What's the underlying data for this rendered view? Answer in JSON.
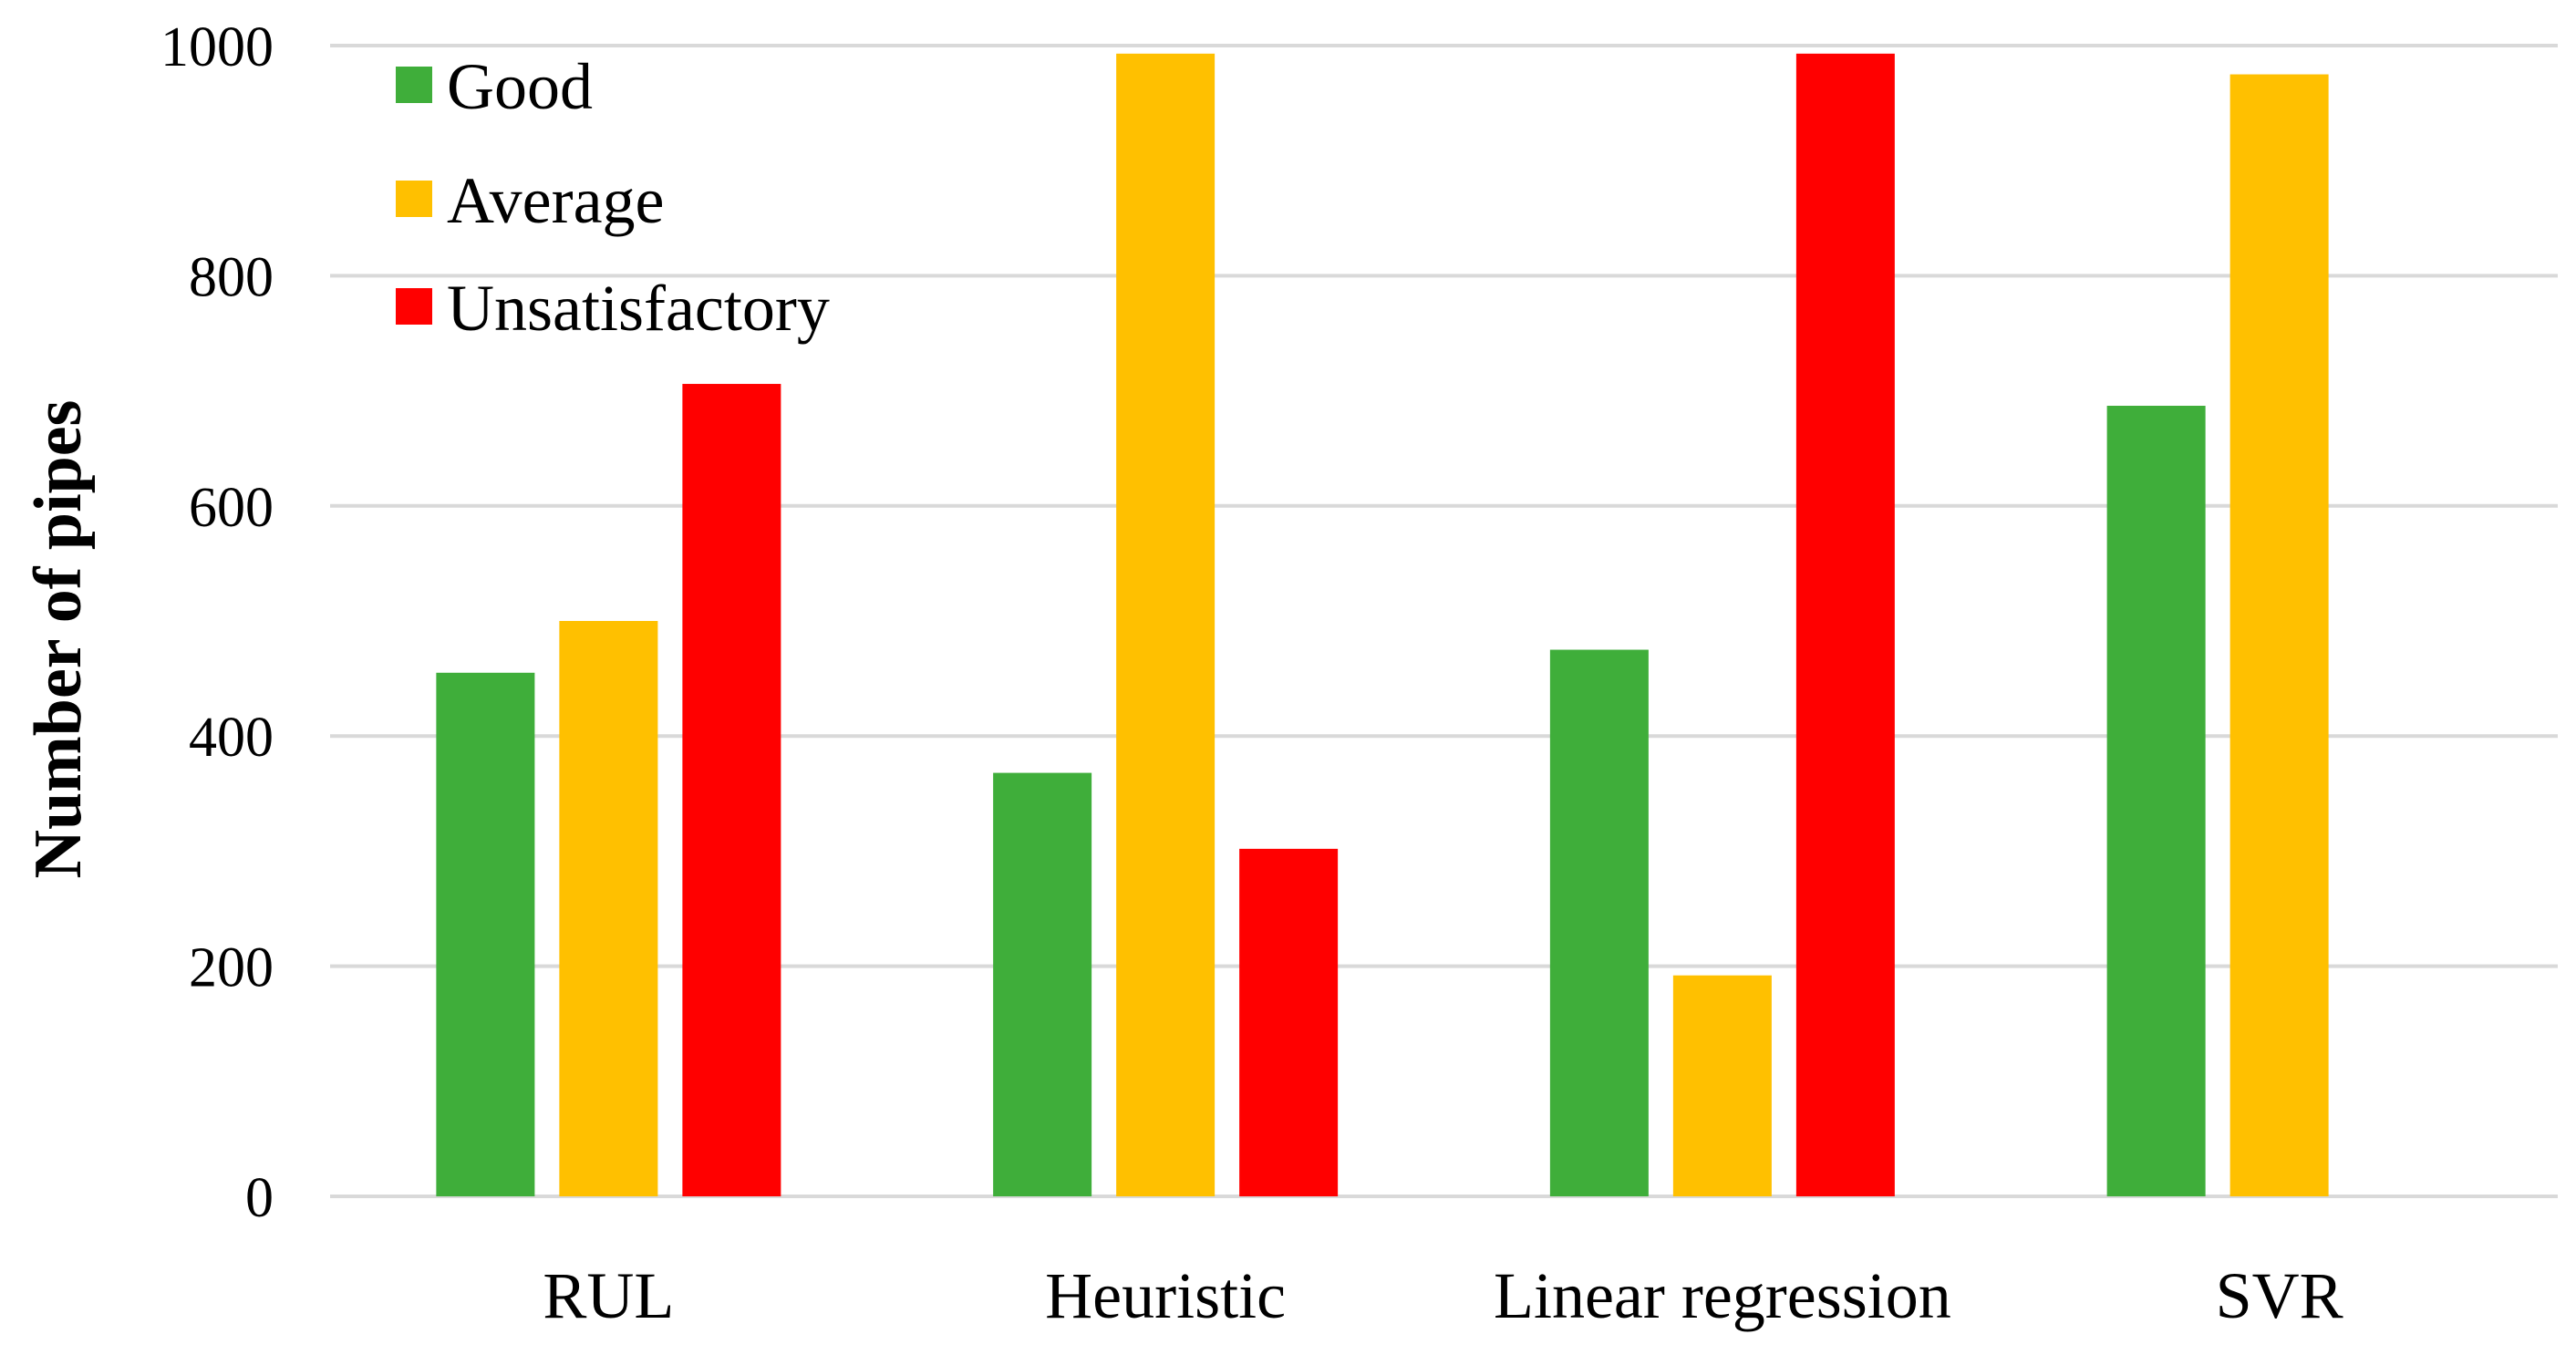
{
  "chart_data": {
    "type": "bar",
    "title": "",
    "xlabel": "",
    "ylabel": "Number of pipes",
    "ylim": [
      0,
      1000
    ],
    "yticks": [
      0,
      200,
      400,
      600,
      800,
      1000
    ],
    "grid": true,
    "legend_position": "top-left",
    "categories": [
      "RUL",
      "Heuristic",
      "Linear regression",
      "SVR"
    ],
    "series": [
      {
        "name": "Good",
        "color": "#3fae3a",
        "values": [
          455,
          368,
          475,
          687
        ]
      },
      {
        "name": "Average",
        "color": "#ffc000",
        "values": [
          500,
          993,
          192,
          975
        ]
      },
      {
        "name": "Unsatisfactory",
        "color": "#ff0000",
        "values": [
          706,
          302,
          993,
          0
        ]
      }
    ]
  }
}
